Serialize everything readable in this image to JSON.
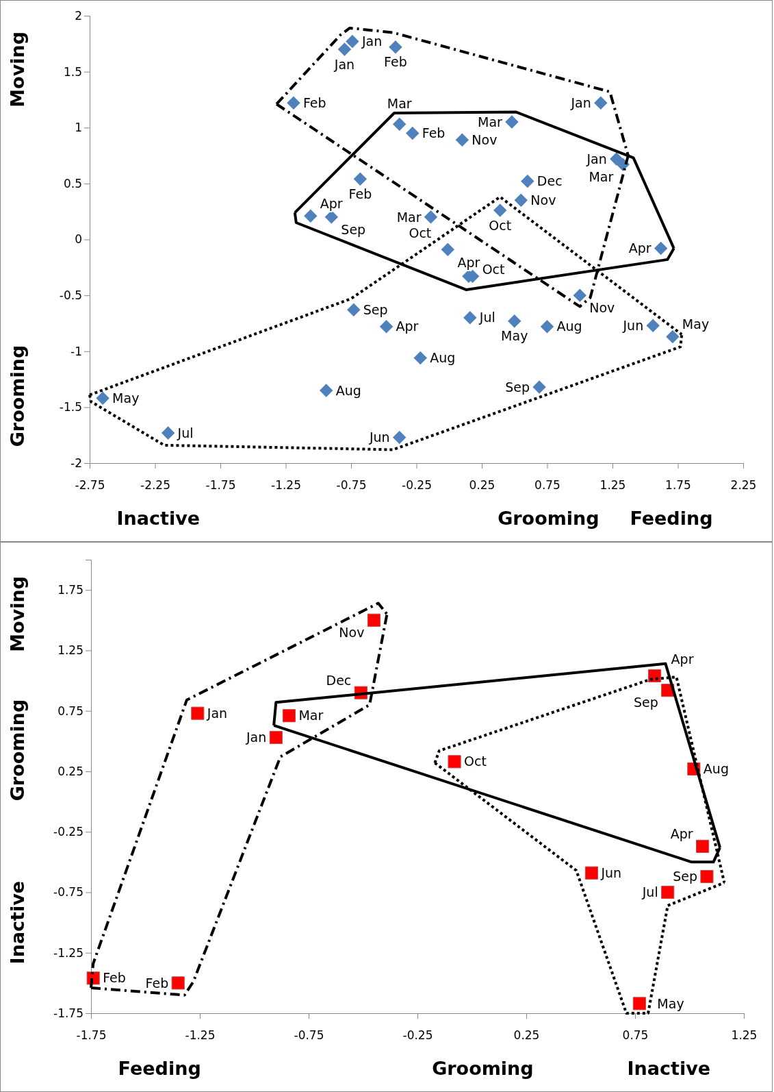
{
  "chart_data": [
    {
      "type": "scatter",
      "xlim": [
        -2.75,
        2.25
      ],
      "xticks": [
        -2.75,
        -2.25,
        -1.75,
        -1.25,
        -0.75,
        -0.25,
        0.25,
        0.75,
        1.25,
        1.75,
        2.25
      ],
      "ylim": [
        -2,
        2
      ],
      "yticks": [
        -2,
        -1.5,
        -1,
        -0.5,
        0,
        0.5,
        1,
        1.5,
        2
      ],
      "series": [
        {
          "type": "scatter",
          "marker": "diamond",
          "color": "#4f81bd",
          "x": [
            -0.74,
            -0.8,
            -0.41,
            -1.19,
            -0.38,
            -0.28,
            -0.68,
            -1.06,
            -0.9,
            -0.14,
            -0.01,
            -0.73,
            -0.48,
            -0.22,
            -0.94,
            -2.65,
            -2.15,
            -0.38,
            1.16,
            0.1,
            0.48,
            1.28,
            1.33,
            0.6,
            0.55,
            0.39,
            1.62,
            0.15,
            0.18,
            1.0,
            0.16,
            0.5,
            0.75,
            1.56,
            1.71,
            0.69
          ],
          "values": [
            1.77,
            1.7,
            1.72,
            1.22,
            1.03,
            0.95,
            0.54,
            0.21,
            0.2,
            0.2,
            -0.09,
            -0.63,
            -0.78,
            -1.06,
            -1.35,
            -1.42,
            -1.73,
            -1.77,
            1.22,
            0.89,
            1.05,
            0.72,
            0.67,
            0.52,
            0.35,
            0.26,
            -0.08,
            -0.33,
            -0.33,
            -0.5,
            -0.7,
            -0.73,
            -0.78,
            -0.77,
            -0.87,
            -1.32
          ]
        },
        {
          "type": "line",
          "marker": "none",
          "line_style": "dashed",
          "color": "#000000",
          "x": [
            -1.32,
            -0.83,
            -0.76,
            -0.43,
            1.23,
            1.37
          ],
          "values": [
            1.21,
            1.83,
            1.89,
            1.85,
            1.32,
            0.75
          ]
        },
        {
          "type": "line",
          "marker": "none",
          "line_style": "dashed",
          "color": "#000000",
          "x": [
            -1.32,
            1.0,
            1.08,
            1.37
          ],
          "values": [
            1.21,
            -0.6,
            -0.52,
            0.75
          ]
        },
        {
          "type": "line",
          "marker": "none",
          "line_style": "solid",
          "color": "#000000",
          "x": [
            -1.18,
            -0.42,
            0.51,
            1.41,
            1.72
          ],
          "values": [
            0.24,
            1.13,
            1.14,
            0.73,
            -0.08
          ]
        },
        {
          "type": "line",
          "marker": "none",
          "line_style": "solid",
          "color": "#000000",
          "x": [
            -1.18,
            -1.17,
            0.13,
            1.67,
            1.72
          ],
          "values": [
            0.24,
            0.15,
            -0.45,
            -0.18,
            -0.08
          ]
        },
        {
          "type": "line",
          "marker": "none",
          "line_style": "dotted",
          "color": "#000000",
          "x": [
            -2.75,
            -0.75,
            0.39,
            1.78
          ],
          "values": [
            -1.39,
            -0.53,
            0.38,
            -0.85
          ]
        },
        {
          "type": "line",
          "marker": "none",
          "line_style": "dotted",
          "color": "#000000",
          "x": [
            -2.75,
            -2.74,
            -2.18,
            -0.43,
            1.77,
            1.78
          ],
          "values": [
            -1.39,
            -1.45,
            -1.84,
            -1.88,
            -0.96,
            -0.85
          ]
        }
      ],
      "annotations": [
        {
          "text": "Jan",
          "x": -0.74,
          "y": 1.77
        },
        {
          "text": "Jan",
          "x": -0.8,
          "y": 1.7
        },
        {
          "text": "Feb",
          "x": -0.41,
          "y": 1.72
        },
        {
          "text": "Feb",
          "x": -1.19,
          "y": 1.22
        },
        {
          "text": "Mar",
          "x": -0.38,
          "y": 1.03
        },
        {
          "text": "Feb",
          "x": -0.28,
          "y": 0.95
        },
        {
          "text": "Feb",
          "x": -0.68,
          "y": 0.54
        },
        {
          "text": "Apr",
          "x": -1.06,
          "y": 0.21
        },
        {
          "text": "Sep",
          "x": -0.9,
          "y": 0.2
        },
        {
          "text": "Mar",
          "x": -0.14,
          "y": 0.2
        },
        {
          "text": "Oct",
          "x": -0.01,
          "y": -0.09
        },
        {
          "text": "Sep",
          "x": -0.73,
          "y": -0.63
        },
        {
          "text": "Apr",
          "x": -0.48,
          "y": -0.78
        },
        {
          "text": "Aug",
          "x": -0.22,
          "y": -1.06
        },
        {
          "text": "Aug",
          "x": -0.94,
          "y": -1.35
        },
        {
          "text": "May",
          "x": -2.65,
          "y": -1.42
        },
        {
          "text": "Jul",
          "x": -2.15,
          "y": -1.73
        },
        {
          "text": "Jun",
          "x": -0.38,
          "y": -1.77
        },
        {
          "text": "Jan",
          "x": 1.16,
          "y": 1.22
        },
        {
          "text": "Nov",
          "x": 0.1,
          "y": 0.89
        },
        {
          "text": "Mar",
          "x": 0.48,
          "y": 1.05
        },
        {
          "text": "Jan",
          "x": 1.28,
          "y": 0.72
        },
        {
          "text": "Mar",
          "x": 1.33,
          "y": 0.67
        },
        {
          "text": "Dec",
          "x": 0.6,
          "y": 0.52
        },
        {
          "text": "Nov",
          "x": 0.55,
          "y": 0.35
        },
        {
          "text": "Oct",
          "x": 0.39,
          "y": 0.26
        },
        {
          "text": "Apr",
          "x": 1.62,
          "y": -0.08
        },
        {
          "text": "Apr",
          "x": 0.15,
          "y": -0.33
        },
        {
          "text": "Oct",
          "x": 0.18,
          "y": -0.33
        },
        {
          "text": "Nov",
          "x": 1.0,
          "y": -0.5
        },
        {
          "text": "Jul",
          "x": 0.16,
          "y": -0.7
        },
        {
          "text": "May",
          "x": 0.5,
          "y": -0.73
        },
        {
          "text": "Aug",
          "x": 0.75,
          "y": -0.78
        },
        {
          "text": "Jun",
          "x": 1.56,
          "y": -0.77
        },
        {
          "text": "May",
          "x": 1.71,
          "y": -0.87
        },
        {
          "text": "Sep",
          "x": 0.69,
          "y": -1.32
        },
        "Inactive",
        "Grooming",
        "Feeding",
        "Moving",
        "Grooming"
      ]
    },
    {
      "type": "scatter",
      "xlim": [
        -1.75,
        1.25
      ],
      "xticks": [
        -1.75,
        -1.25,
        -0.75,
        -0.25,
        0.25,
        0.75,
        1.25
      ],
      "ylim": [
        -1.75,
        2
      ],
      "yticks": [
        -1.75,
        -1.25,
        -0.75,
        -0.25,
        0.25,
        0.75,
        1.25,
        1.75
      ],
      "series": [
        {
          "type": "scatter",
          "marker": "square",
          "color": "#ff0000",
          "x": [
            -1.74,
            -1.35,
            -1.26,
            -0.9,
            -0.84,
            -0.51,
            -0.45,
            -0.08,
            0.84,
            0.9,
            1.02,
            1.06,
            0.55,
            1.08,
            0.9,
            0.77
          ],
          "values": [
            -1.46,
            -1.5,
            0.73,
            0.53,
            0.71,
            0.9,
            1.5,
            0.33,
            1.04,
            0.92,
            0.27,
            -0.37,
            -0.59,
            -0.62,
            -0.75,
            -1.67
          ]
        },
        {
          "type": "line",
          "marker": "none",
          "line_style": "dashed",
          "color": "#000000",
          "x": [
            -1.75,
            -1.74,
            -1.31,
            -0.43,
            -0.39
          ],
          "values": [
            -1.54,
            -1.34,
            0.84,
            1.64,
            1.55
          ]
        },
        {
          "type": "line",
          "marker": "none",
          "line_style": "dashed",
          "color": "#000000",
          "x": [
            -1.75,
            -1.32,
            -1.28,
            -0.88,
            -0.47,
            -0.39
          ],
          "values": [
            -1.54,
            -1.6,
            -1.49,
            0.37,
            0.8,
            1.55
          ]
        },
        {
          "type": "line",
          "marker": "none",
          "line_style": "solid",
          "color": "#000000",
          "x": [
            -0.91,
            -0.9,
            0.89,
            1.14
          ],
          "values": [
            0.63,
            0.82,
            1.14,
            -0.38
          ]
        },
        {
          "type": "line",
          "marker": "none",
          "line_style": "solid",
          "color": "#000000",
          "x": [
            -0.91,
            1.01,
            1.11,
            1.14
          ],
          "values": [
            0.63,
            -0.5,
            -0.5,
            -0.38
          ]
        },
        {
          "type": "line",
          "marker": "none",
          "line_style": "dotted",
          "color": "#000000",
          "x": [
            -0.17,
            -0.15,
            0.82,
            0.94,
            1.16
          ],
          "values": [
            0.32,
            0.42,
            1.01,
            1.03,
            -0.67
          ]
        },
        {
          "type": "line",
          "marker": "none",
          "line_style": "dotted",
          "color": "#000000",
          "x": [
            -0.17,
            0.48,
            0.71,
            0.81,
            0.9,
            1.16
          ],
          "values": [
            0.32,
            -0.57,
            -1.75,
            -1.75,
            -0.86,
            -0.67
          ]
        }
      ],
      "annotations": [
        {
          "text": "Feb",
          "x": -1.74,
          "y": -1.46
        },
        {
          "text": "Feb",
          "x": -1.35,
          "y": -1.5
        },
        {
          "text": "Jan",
          "x": -1.26,
          "y": 0.73
        },
        {
          "text": "Jan",
          "x": -0.9,
          "y": 0.53
        },
        {
          "text": "Mar",
          "x": -0.84,
          "y": 0.71
        },
        {
          "text": "Dec",
          "x": -0.51,
          "y": 0.9
        },
        {
          "text": "Nov",
          "x": -0.45,
          "y": 1.5
        },
        {
          "text": "Oct",
          "x": -0.08,
          "y": 0.33
        },
        {
          "text": "Apr",
          "x": 0.84,
          "y": 1.04
        },
        {
          "text": "Sep",
          "x": 0.9,
          "y": 0.92
        },
        {
          "text": "Aug",
          "x": 1.02,
          "y": 0.27
        },
        {
          "text": "Apr",
          "x": 1.06,
          "y": -0.37
        },
        {
          "text": "Jun",
          "x": 0.55,
          "y": -0.59
        },
        {
          "text": "Sep",
          "x": 1.08,
          "y": -0.62
        },
        {
          "text": "Jul",
          "x": 0.9,
          "y": -0.75
        },
        {
          "text": "May",
          "x": 0.77,
          "y": -1.67
        },
        "Feeding",
        "Grooming",
        "Inactive",
        "Moving",
        "Grooming",
        "Inactive"
      ]
    }
  ]
}
